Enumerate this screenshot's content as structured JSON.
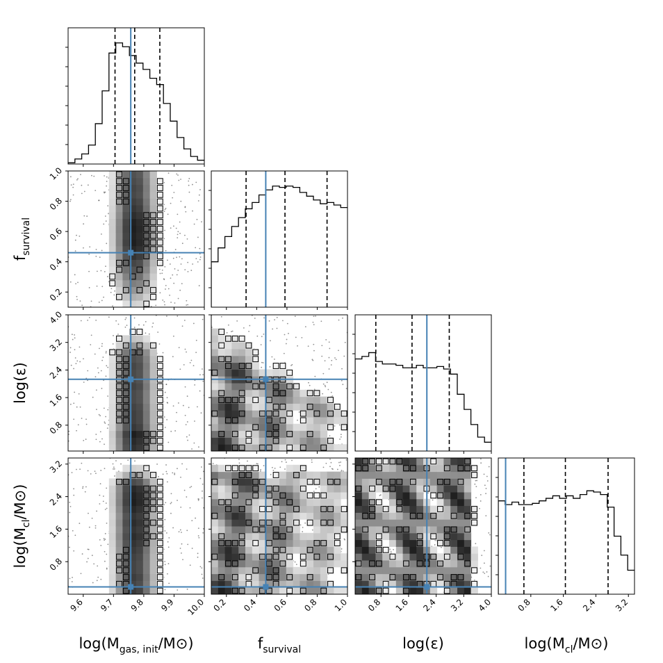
{
  "chart_data": {
    "type": "corner",
    "parameters": [
      {
        "key": "logMgas",
        "label": "log(M",
        "sub": "gas, init",
        "tail": "/M⊙)",
        "range": [
          9.55,
          10.0
        ],
        "ticks": [
          "9.6",
          "9.7",
          "9.8",
          "9.9",
          "10.0"
        ],
        "tick_values": [
          9.6,
          9.7,
          9.8,
          9.9,
          10.0
        ],
        "quantiles": [
          9.705,
          9.77,
          9.853
        ],
        "truth": 9.757
      },
      {
        "key": "fsurv",
        "label": "f",
        "sub": "survival",
        "tail": "",
        "range": [
          0.1,
          1.0
        ],
        "ticks": [
          "0.2",
          "0.4",
          "0.6",
          "0.8",
          "1.0"
        ],
        "tick_values": [
          0.2,
          0.4,
          0.6,
          0.8,
          1.0
        ],
        "ticks_y": [
          "0.2",
          "0.4",
          "0.6",
          "0.8",
          "1.0"
        ],
        "quantiles": [
          0.33,
          0.587,
          0.865
        ],
        "truth": 0.46
      },
      {
        "key": "logeps",
        "label": "log(",
        "sub": "",
        "tail": "ε)",
        "range": [
          0.05,
          4.0
        ],
        "ticks": [
          "0.8",
          "1.6",
          "2.4",
          "3.2",
          "4.0"
        ],
        "tick_values": [
          0.8,
          1.6,
          2.4,
          3.2,
          4.0
        ],
        "ticks_y": [
          "0.8",
          "1.6",
          "2.4",
          "3.2",
          "4.0"
        ],
        "quantiles": [
          0.65,
          1.7,
          2.78
        ],
        "truth": 2.13
      },
      {
        "key": "logMcl",
        "label": "log(M",
        "sub": "cl",
        "tail": "/M⊙)",
        "range": [
          0.0,
          3.35
        ],
        "ticks": [
          "0.8",
          "1.6",
          "2.4",
          "3.2"
        ],
        "tick_values": [
          0.8,
          1.6,
          2.4,
          3.2
        ],
        "ticks_y": [
          "0.8",
          "1.6",
          "2.4",
          "3.2"
        ],
        "quantiles": [
          0.63,
          1.65,
          2.7
        ],
        "truth": 0.18
      }
    ],
    "histograms": [
      {
        "edges_start": 9.55,
        "bin": 0.0225,
        "values": [
          0.01,
          0.04,
          0.08,
          0.15,
          0.32,
          0.58,
          0.88,
          0.96,
          0.93,
          0.86,
          0.8,
          0.75,
          0.68,
          0.63,
          0.48,
          0.34,
          0.21,
          0.12,
          0.06,
          0.03
        ]
      },
      {
        "edges_start": 0.1,
        "bin": 0.045,
        "values": [
          0.36,
          0.47,
          0.56,
          0.64,
          0.71,
          0.78,
          0.83,
          0.89,
          0.93,
          0.96,
          0.95,
          0.96,
          0.95,
          0.91,
          0.88,
          0.85,
          0.82,
          0.83,
          0.81,
          0.79
        ]
      },
      {
        "edges_start": 0.05,
        "bin": 0.1975,
        "values": [
          0.73,
          0.75,
          0.78,
          0.71,
          0.69,
          0.69,
          0.68,
          0.66,
          0.66,
          0.68,
          0.66,
          0.66,
          0.67,
          0.65,
          0.61,
          0.45,
          0.33,
          0.21,
          0.11,
          0.07
        ]
      },
      {
        "edges_start": 0.0,
        "bin": 0.1675,
        "values": [
          0.74,
          0.71,
          0.73,
          0.71,
          0.71,
          0.72,
          0.74,
          0.76,
          0.78,
          0.76,
          0.78,
          0.76,
          0.79,
          0.82,
          0.81,
          0.79,
          0.69,
          0.46,
          0.31,
          0.19
        ]
      }
    ],
    "truth_color": "#4682b4",
    "quantile_style": "dashed"
  }
}
